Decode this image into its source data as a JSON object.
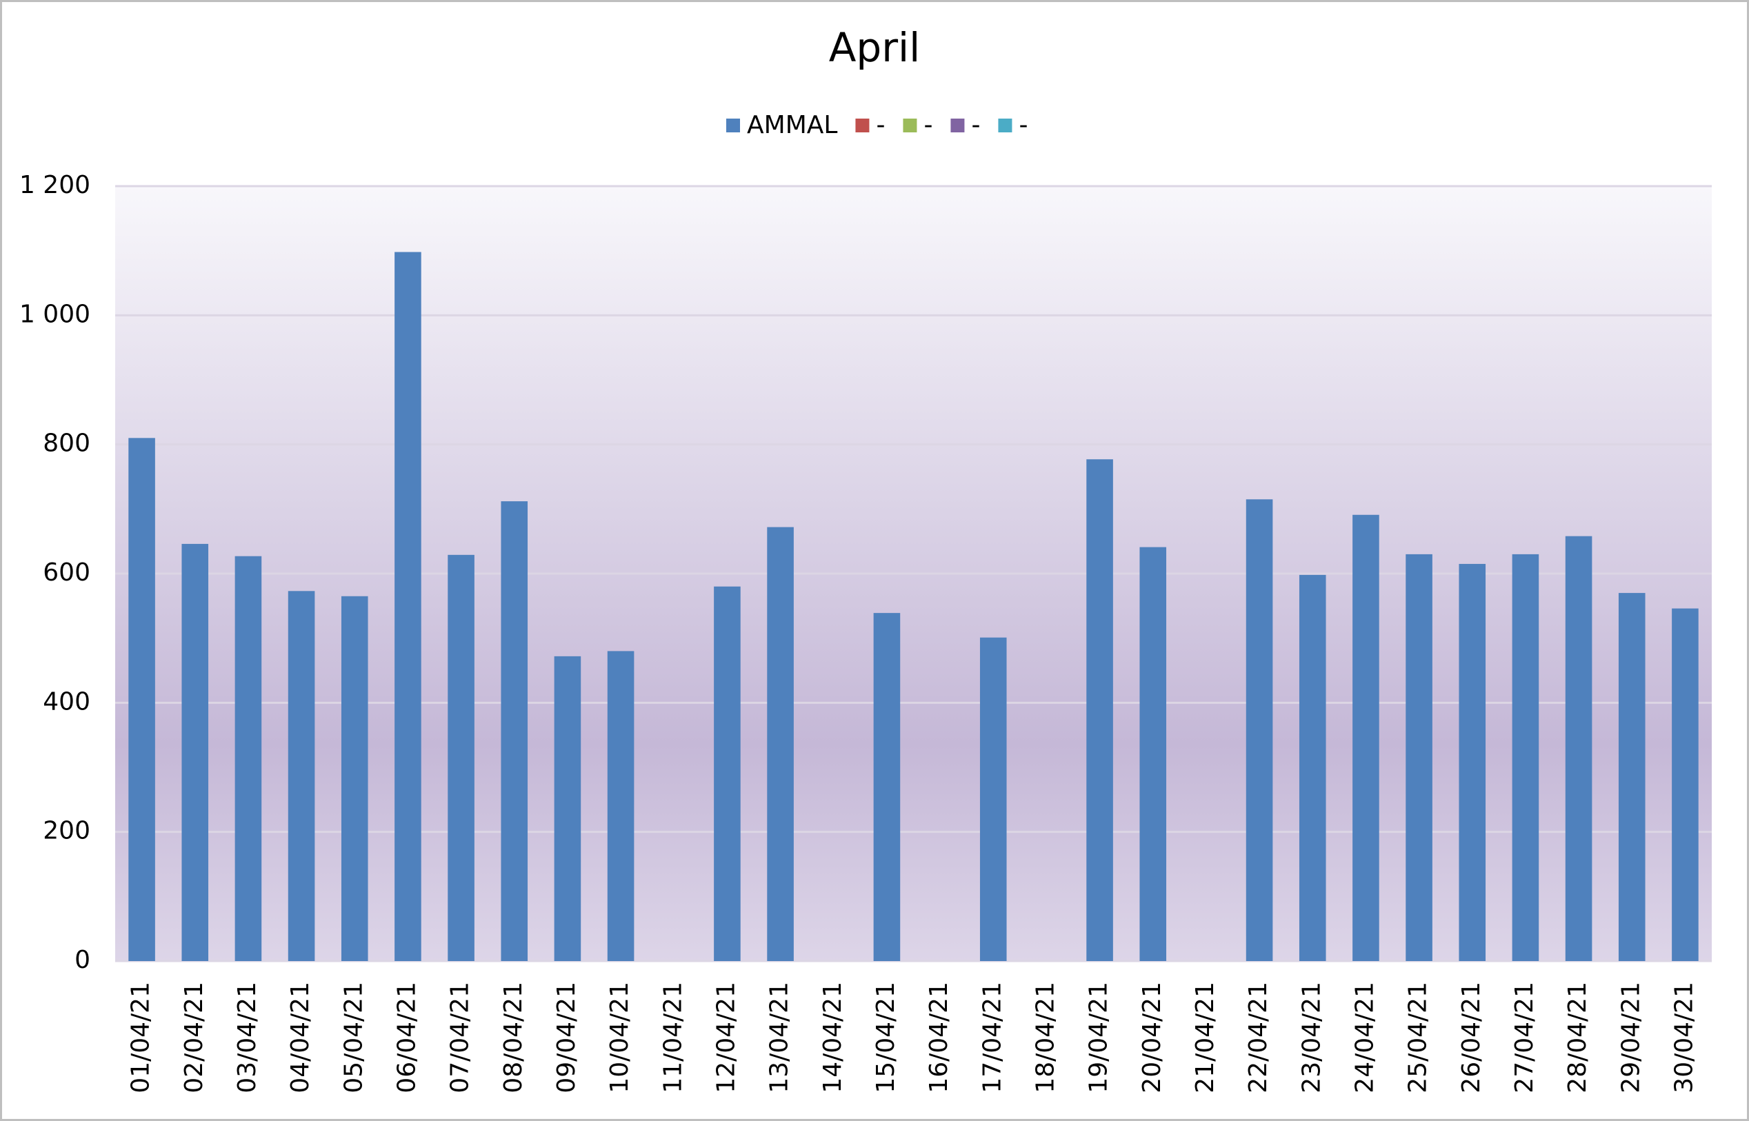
{
  "chart_data": {
    "type": "bar",
    "title": "April",
    "categories": [
      "01/04/21",
      "02/04/21",
      "03/04/21",
      "04/04/21",
      "05/04/21",
      "06/04/21",
      "07/04/21",
      "08/04/21",
      "09/04/21",
      "10/04/21",
      "11/04/21",
      "12/04/21",
      "13/04/21",
      "14/04/21",
      "15/04/21",
      "16/04/21",
      "17/04/21",
      "18/04/21",
      "19/04/21",
      "20/04/21",
      "21/04/21",
      "22/04/21",
      "23/04/21",
      "24/04/21",
      "25/04/21",
      "26/04/21",
      "27/04/21",
      "28/04/21",
      "29/04/21",
      "30/04/21"
    ],
    "series": [
      {
        "name": "AMMAL",
        "color": "#4f81bd",
        "values": [
          810,
          646,
          627,
          573,
          565,
          1098,
          629,
          712,
          472,
          480,
          null,
          580,
          672,
          null,
          539,
          null,
          501,
          null,
          777,
          641,
          null,
          715,
          598,
          691,
          630,
          615,
          630,
          658,
          570,
          546
        ]
      },
      {
        "name": "-",
        "color": "#c0504d",
        "values": [
          null,
          null,
          null,
          null,
          null,
          null,
          null,
          null,
          null,
          null,
          null,
          null,
          null,
          null,
          null,
          null,
          null,
          null,
          null,
          null,
          null,
          null,
          null,
          null,
          null,
          null,
          null,
          null,
          null,
          null
        ]
      },
      {
        "name": "-",
        "color": "#9bbb59",
        "values": [
          null,
          null,
          null,
          null,
          null,
          null,
          null,
          null,
          null,
          null,
          null,
          null,
          null,
          null,
          null,
          null,
          null,
          null,
          null,
          null,
          null,
          null,
          null,
          null,
          null,
          null,
          null,
          null,
          null,
          null
        ]
      },
      {
        "name": "-",
        "color": "#8064a2",
        "values": [
          null,
          null,
          null,
          null,
          null,
          null,
          null,
          null,
          null,
          null,
          null,
          null,
          null,
          null,
          null,
          null,
          null,
          null,
          null,
          null,
          null,
          null,
          null,
          null,
          null,
          null,
          null,
          null,
          null,
          null
        ]
      },
      {
        "name": "-",
        "color": "#4bacc6",
        "values": [
          null,
          null,
          null,
          null,
          null,
          null,
          null,
          null,
          null,
          null,
          null,
          null,
          null,
          null,
          null,
          null,
          null,
          null,
          null,
          null,
          null,
          null,
          null,
          null,
          null,
          null,
          null,
          null,
          null,
          null
        ]
      }
    ],
    "ylim": [
      0,
      1200
    ],
    "yticks": [
      0,
      200,
      400,
      600,
      800,
      {
        "value": 1000,
        "label": "1 000"
      },
      {
        "value": 1200,
        "label": "1 200"
      }
    ],
    "grid": true,
    "legend": "top"
  }
}
